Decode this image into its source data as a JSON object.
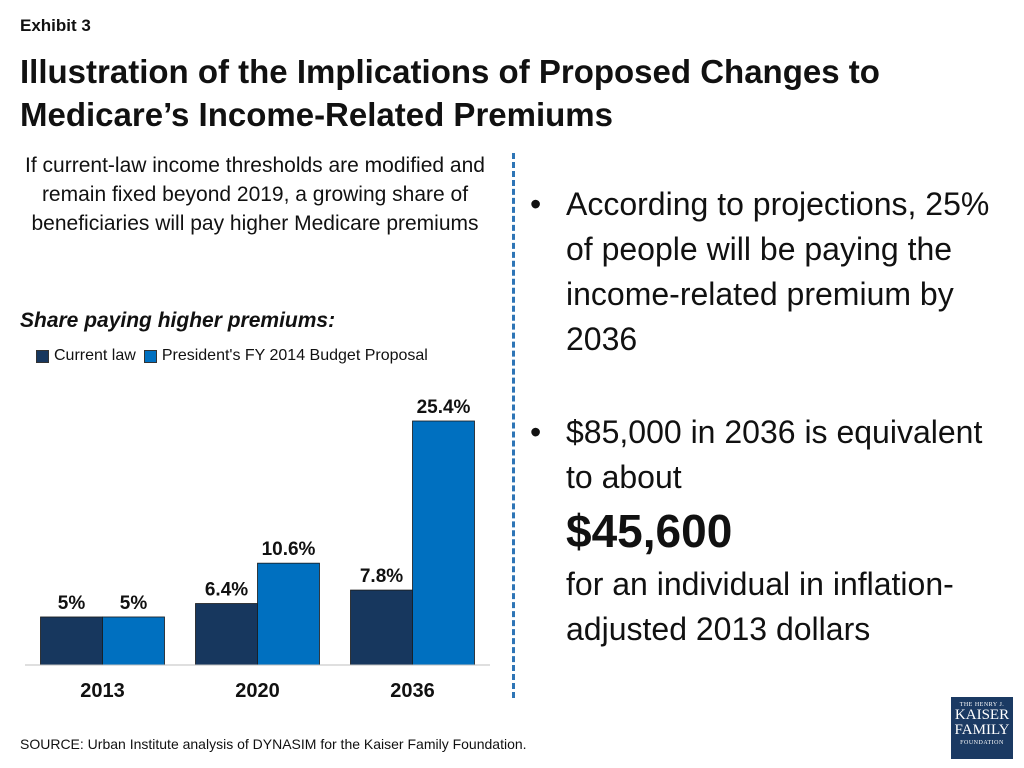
{
  "exhibit": "Exhibit 3",
  "title": "Illustration of the Implications of Proposed Changes to Medicare’s Income-Related Premiums",
  "subtitle": "If current-law income thresholds are modified and remain fixed beyond 2019, a growing share of beneficiaries will pay higher Medicare premiums",
  "share_label": "Share paying higher premiums:",
  "colors": {
    "current_law": "#17375e",
    "proposal": "#0070c0",
    "accent": "#2e75b6",
    "logo": "#1b3a63"
  },
  "chart_data": {
    "type": "bar",
    "categories": [
      "2013",
      "2020",
      "2036"
    ],
    "series": [
      {
        "name": "Current law",
        "values": [
          5,
          6.4,
          7.8
        ],
        "labels": [
          "5%",
          "6.4%",
          "7.8%"
        ]
      },
      {
        "name": "President's FY 2014 Budget Proposal",
        "values": [
          5,
          10.6,
          25.4
        ],
        "labels": [
          "5%",
          "10.6%",
          "25.4%"
        ]
      }
    ],
    "ylim": [
      0,
      25.4
    ],
    "grid": false,
    "legend_position": "top-left"
  },
  "bullets": {
    "b1": "According to projections, 25% of people will be paying the income-related premium by 2036",
    "b2_lead": "$85,000 in 2036 is equivalent to about",
    "b2_amount": "$45,600",
    "b2_tail": "for an individual in inflation-adjusted 2013 dollars",
    "dot": "•"
  },
  "source": "SOURCE: Urban Institute analysis of DYNASIM for the Kaiser Family Foundation.",
  "logo": {
    "line1": "THE HENRY J.",
    "line2": "KAISER",
    "line3": "FAMILY",
    "line4": "FOUNDATION"
  }
}
